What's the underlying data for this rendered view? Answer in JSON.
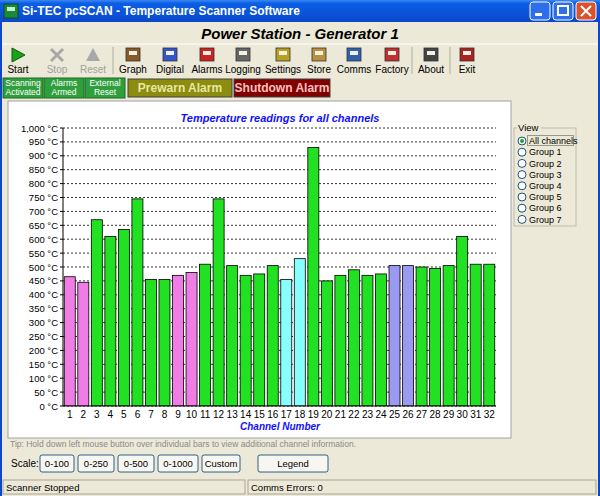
{
  "window": {
    "title": "Si-TEC pcSCAN - Temperature Scanner Software"
  },
  "header": {
    "title": "Power Station - Generator 1"
  },
  "toolbar": {
    "buttons": [
      {
        "label": "Start",
        "enabled": true
      },
      {
        "label": "Stop",
        "enabled": false
      },
      {
        "label": "Reset",
        "enabled": false
      },
      {
        "label": "Graph",
        "enabled": true
      },
      {
        "label": "Digital",
        "enabled": true
      },
      {
        "label": "Alarms",
        "enabled": true
      },
      {
        "label": "Logging",
        "enabled": true
      },
      {
        "label": "Settings",
        "enabled": true
      },
      {
        "label": "Store",
        "enabled": true
      },
      {
        "label": "Comms",
        "enabled": true
      },
      {
        "label": "Factory",
        "enabled": true
      },
      {
        "label": "About",
        "enabled": true
      },
      {
        "label": "Exit",
        "enabled": true
      }
    ]
  },
  "indicators": [
    "Scanning Activated",
    "Alarms Armed",
    "External Reset"
  ],
  "alarms": [
    "Prewarn Alarm",
    "Shutdown Alarm"
  ],
  "chart_data": {
    "type": "bar",
    "title": "Temperature readings for all channels",
    "x_label": "Channel Number",
    "categories": [
      "1",
      "2",
      "3",
      "4",
      "5",
      "6",
      "7",
      "8",
      "9",
      "10",
      "11",
      "12",
      "13",
      "14",
      "15",
      "16",
      "17",
      "18",
      "19",
      "20",
      "21",
      "22",
      "23",
      "24",
      "25",
      "26",
      "27",
      "28",
      "29",
      "30",
      "31",
      "32"
    ],
    "values": [
      465,
      445,
      670,
      610,
      635,
      745,
      455,
      455,
      470,
      480,
      510,
      745,
      505,
      470,
      475,
      505,
      455,
      530,
      930,
      450,
      470,
      490,
      470,
      475,
      505,
      505,
      500,
      495,
      505,
      610,
      510,
      510
    ],
    "colors": [
      "#f07ce6",
      "#f07ce6",
      "#22e022",
      "#22e022",
      "#22e022",
      "#22e022",
      "#22e022",
      "#22e022",
      "#f07ce6",
      "#f07ce6",
      "#22e022",
      "#22e022",
      "#22e022",
      "#22e022",
      "#22e022",
      "#22e022",
      "#88ffff",
      "#88ffff",
      "#22e022",
      "#22e022",
      "#22e022",
      "#22e022",
      "#22e022",
      "#22e022",
      "#9a9af0",
      "#9a9af0",
      "#22e022",
      "#22e022",
      "#22e022",
      "#22e022",
      "#22e022",
      "#22e022"
    ],
    "ylim": [
      0,
      1000
    ],
    "yticks": [
      {
        "value": 0,
        "label": "0 °C"
      },
      {
        "value": 50,
        "label": "50 °C"
      },
      {
        "value": 100,
        "label": "100 °C"
      },
      {
        "value": 150,
        "label": "150 °C"
      },
      {
        "value": 200,
        "label": "200 °C"
      },
      {
        "value": 250,
        "label": "250 °C"
      },
      {
        "value": 300,
        "label": "300 °C"
      },
      {
        "value": 350,
        "label": "350 °C"
      },
      {
        "value": 400,
        "label": "400 °C"
      },
      {
        "value": 450,
        "label": "450 °C"
      },
      {
        "value": 500,
        "label": "500 °C"
      },
      {
        "value": 550,
        "label": "550 °C"
      },
      {
        "value": 600,
        "label": "600 °C"
      },
      {
        "value": 650,
        "label": "650 °C"
      },
      {
        "value": 700,
        "label": "700 °C"
      },
      {
        "value": 750,
        "label": "750 °C"
      },
      {
        "value": 800,
        "label": "800 °C"
      },
      {
        "value": 850,
        "label": "850 °C"
      },
      {
        "value": 900,
        "label": "900 °C"
      },
      {
        "value": 950,
        "label": "950 °C"
      },
      {
        "value": 1000,
        "label": "1,000 °C"
      }
    ],
    "grid": true
  },
  "view": {
    "title": "View",
    "options": [
      "All channels",
      "Group 1",
      "Group 2",
      "Group 3",
      "Group 4",
      "Group 5",
      "Group 6",
      "Group 7"
    ],
    "selected": 0
  },
  "tip": "Tip: Hold down left mouse button over individual bars to view additional channel information.",
  "scale": {
    "label": "Scale:",
    "buttons": [
      "0-100",
      "0-250",
      "0-500",
      "0-1000",
      "Custom"
    ]
  },
  "legend_button": "Legend",
  "status_bar": [
    "Scanner Stopped",
    "Comms Errors: 0"
  ]
}
